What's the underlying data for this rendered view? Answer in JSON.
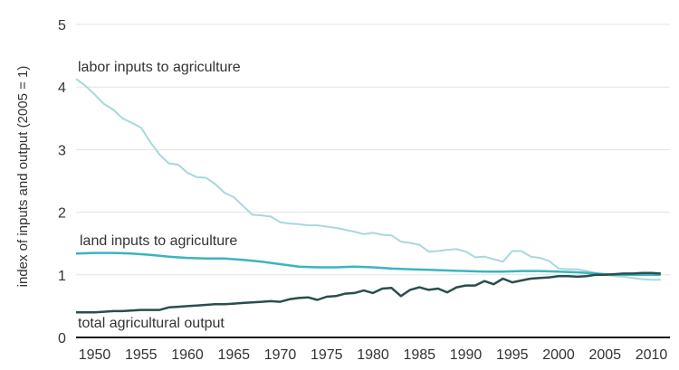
{
  "chart_data": {
    "type": "line",
    "title": "",
    "xlabel": "",
    "ylabel": "index of inputs and output (2005 = 1)",
    "xlim": [
      1948,
      2012
    ],
    "ylim": [
      0,
      5
    ],
    "x_ticks": [
      "1950",
      "1955",
      "1960",
      "1965",
      "1970",
      "1975",
      "1980",
      "1985",
      "1990",
      "1995",
      "2000",
      "2005",
      "2010"
    ],
    "y_ticks": [
      "0",
      "1",
      "2",
      "3",
      "4",
      "5"
    ],
    "grid": true,
    "series": [
      {
        "name": "labor inputs to agriculture",
        "color": "#a8d8dc",
        "x": [
          1948,
          1949,
          1950,
          1951,
          1952,
          1953,
          1954,
          1955,
          1956,
          1957,
          1958,
          1959,
          1960,
          1961,
          1962,
          1963,
          1964,
          1965,
          1966,
          1967,
          1968,
          1969,
          1970,
          1971,
          1972,
          1973,
          1974,
          1975,
          1976,
          1977,
          1978,
          1979,
          1980,
          1981,
          1982,
          1983,
          1984,
          1985,
          1986,
          1987,
          1988,
          1989,
          1990,
          1991,
          1992,
          1993,
          1994,
          1995,
          1996,
          1997,
          1998,
          1999,
          2000,
          2001,
          2002,
          2003,
          2004,
          2005,
          2006,
          2007,
          2008,
          2009,
          2010,
          2011
        ],
        "y": [
          4.13,
          4.02,
          3.88,
          3.73,
          3.64,
          3.5,
          3.43,
          3.35,
          3.12,
          2.92,
          2.78,
          2.76,
          2.63,
          2.56,
          2.55,
          2.45,
          2.31,
          2.24,
          2.1,
          1.96,
          1.95,
          1.93,
          1.84,
          1.82,
          1.81,
          1.79,
          1.79,
          1.77,
          1.75,
          1.72,
          1.69,
          1.65,
          1.67,
          1.64,
          1.63,
          1.53,
          1.51,
          1.48,
          1.37,
          1.38,
          1.4,
          1.41,
          1.37,
          1.28,
          1.29,
          1.25,
          1.21,
          1.38,
          1.38,
          1.29,
          1.27,
          1.22,
          1.1,
          1.09,
          1.09,
          1.06,
          1.03,
          1.0,
          0.98,
          0.97,
          0.95,
          0.93,
          0.92,
          0.92
        ]
      },
      {
        "name": "land inputs to agriculture",
        "color": "#3ab5bf",
        "x": [
          1948,
          1950,
          1952,
          1954,
          1956,
          1958,
          1960,
          1962,
          1964,
          1966,
          1968,
          1970,
          1972,
          1974,
          1976,
          1978,
          1980,
          1982,
          1984,
          1986,
          1988,
          1990,
          1992,
          1994,
          1996,
          1998,
          2000,
          2002,
          2004,
          2006,
          2008,
          2010,
          2011
        ],
        "y": [
          1.34,
          1.35,
          1.35,
          1.34,
          1.32,
          1.29,
          1.27,
          1.26,
          1.26,
          1.24,
          1.21,
          1.17,
          1.13,
          1.12,
          1.12,
          1.13,
          1.12,
          1.1,
          1.09,
          1.08,
          1.07,
          1.06,
          1.05,
          1.05,
          1.06,
          1.06,
          1.05,
          1.04,
          1.02,
          1.0,
          1.0,
          1.0,
          1.0
        ]
      },
      {
        "name": "total agricultural output",
        "color": "#2a4e4c",
        "x": [
          1948,
          1949,
          1950,
          1951,
          1952,
          1953,
          1954,
          1955,
          1956,
          1957,
          1958,
          1959,
          1960,
          1961,
          1962,
          1963,
          1964,
          1965,
          1966,
          1967,
          1968,
          1969,
          1970,
          1971,
          1972,
          1973,
          1974,
          1975,
          1976,
          1977,
          1978,
          1979,
          1980,
          1981,
          1982,
          1983,
          1984,
          1985,
          1986,
          1987,
          1988,
          1989,
          1990,
          1991,
          1992,
          1993,
          1994,
          1995,
          1996,
          1997,
          1998,
          1999,
          2000,
          2001,
          2002,
          2003,
          2004,
          2005,
          2006,
          2007,
          2008,
          2009,
          2010,
          2011
        ],
        "y": [
          0.4,
          0.4,
          0.4,
          0.41,
          0.42,
          0.42,
          0.43,
          0.44,
          0.44,
          0.44,
          0.48,
          0.49,
          0.5,
          0.51,
          0.52,
          0.53,
          0.53,
          0.54,
          0.55,
          0.56,
          0.57,
          0.58,
          0.57,
          0.61,
          0.63,
          0.64,
          0.6,
          0.65,
          0.66,
          0.7,
          0.71,
          0.75,
          0.71,
          0.78,
          0.79,
          0.66,
          0.76,
          0.8,
          0.76,
          0.78,
          0.72,
          0.8,
          0.83,
          0.83,
          0.9,
          0.85,
          0.94,
          0.88,
          0.91,
          0.94,
          0.95,
          0.96,
          0.98,
          0.98,
          0.97,
          0.98,
          1.0,
          1.0,
          1.01,
          1.02,
          1.02,
          1.03,
          1.03,
          1.02
        ]
      }
    ],
    "annotations": [
      "labor inputs to agriculture",
      "land inputs to agriculture",
      "total agricultural output"
    ]
  }
}
